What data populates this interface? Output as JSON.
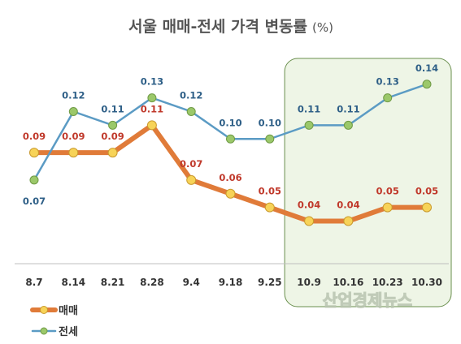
{
  "chart_data": {
    "type": "line",
    "title": "서울 매매-전세 가격 변동률",
    "title_unit": "(%)",
    "categories": [
      "8.7",
      "8.14",
      "8.21",
      "8.28",
      "9.4",
      "9.18",
      "9.25",
      "10.9",
      "10.16",
      "10.23",
      "10.30"
    ],
    "series": [
      {
        "name": "매매",
        "color": "#e07b39",
        "marker_color": "#f7d358",
        "label_color": "#c0392b",
        "values": [
          0.09,
          0.09,
          0.09,
          0.11,
          0.07,
          0.06,
          0.05,
          0.04,
          0.04,
          0.05,
          0.05
        ]
      },
      {
        "name": "전세",
        "color": "#5b9bc4",
        "marker_color": "#9bc86a",
        "label_color": "#2e5f87",
        "values": [
          0.07,
          0.12,
          0.11,
          0.13,
          0.12,
          0.1,
          0.1,
          0.11,
          0.11,
          0.13,
          0.14
        ]
      }
    ],
    "ylim": [
      0.0,
      0.16
    ],
    "highlight_range": [
      "10.9",
      "10.30"
    ],
    "highlight_color": "#eef5e6",
    "legend_position": "bottom-left"
  },
  "watermark": "산업경제뉴스"
}
